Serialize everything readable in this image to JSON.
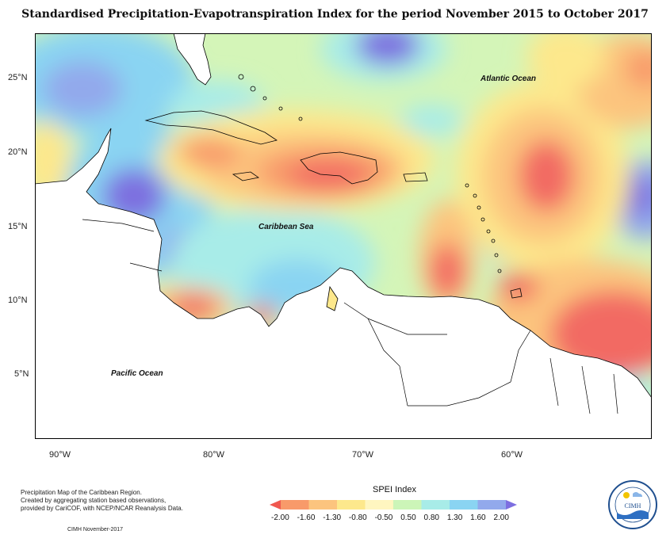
{
  "title": "Standardised Precipitation-Evapotranspiration Index for the period November 2015 to October 2017",
  "axes": {
    "latitude_ticks": [
      "25°N",
      "20°N",
      "15°N",
      "10°N",
      "5°N"
    ],
    "longitude_ticks": [
      "90°W",
      "80°W",
      "70°W",
      "60°W"
    ]
  },
  "map_labels": {
    "atlantic": "Atlantic Ocean",
    "caribbean": "Caribbean Sea",
    "pacific": "Pacific Ocean"
  },
  "caption": {
    "line1": "Precipitation Map of the Caribbean Region.",
    "line2": "Created by aggregating station based observations,",
    "line3": "provided by CariCOF, with NCEP/NCAR Reanalysis Data.",
    "credit": "CIMH November-2017"
  },
  "legend": {
    "title": "SPEI Index",
    "labels": [
      "-2.00",
      "-1.60",
      "-1.30",
      "-0.80",
      "-0.50",
      "0.50",
      "0.80",
      "1.30",
      "1.60",
      "2.00"
    ],
    "colors": [
      "#f0584f",
      "#f89a6a",
      "#fcc47e",
      "#fde88c",
      "#fff6c0",
      "#ccf5b8",
      "#a8ece8",
      "#8ad4f2",
      "#92a9ec",
      "#7d6fe0"
    ]
  },
  "logo": {
    "text": "CIMH"
  },
  "colors": {
    "land": "#ffffff",
    "background_near_normal": "#d4f5b8",
    "dry": "#f26a63",
    "wet": "#7f74e4"
  }
}
